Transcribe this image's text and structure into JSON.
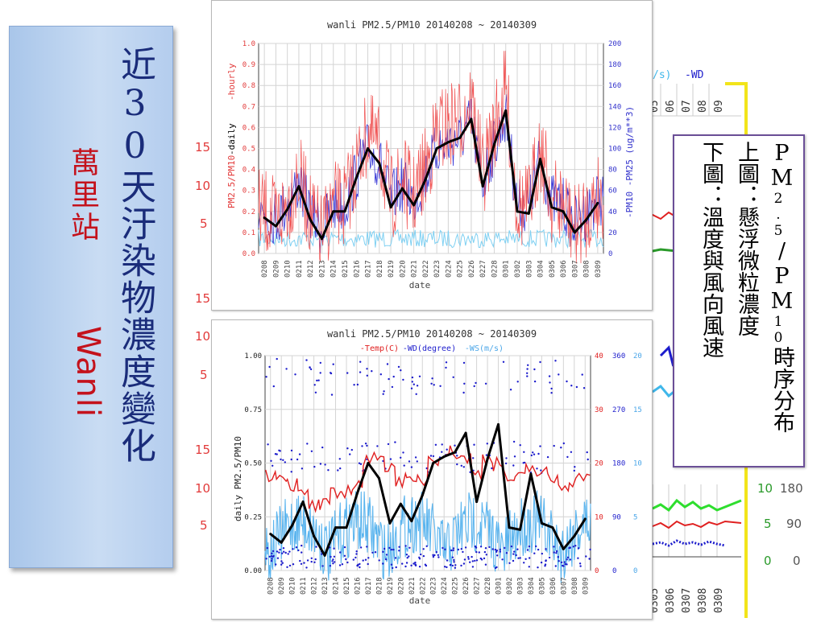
{
  "left_title": {
    "title_chars": "近30天汙染物濃度變化",
    "station_zh": "萬里站",
    "station_en": "Wanli"
  },
  "note": {
    "line1_parts": [
      "PM",
      "2.5",
      "/PM",
      "10",
      "時序分布"
    ],
    "line2": "上圖：懸浮微粒濃度",
    "line3": "下圖：溫度與風向風速"
  },
  "background_labels": {
    "left_scale": [
      "15",
      "10",
      "5",
      "15",
      "10",
      "5",
      "15",
      "10",
      "5"
    ],
    "right_scale": [
      "10",
      "5",
      "0"
    ],
    "right_scale_dir": [
      "180",
      "90",
      "0"
    ],
    "header_fragment": "/s)",
    "header_wd": "-WD",
    "dates_top": [
      "05",
      "06",
      "07",
      "08",
      "09"
    ],
    "dates_bottom": [
      "0305",
      "0306",
      "0307",
      "0308",
      "0309"
    ]
  },
  "chart_data": [
    {
      "type": "line",
      "title": "wanli PM2.5/PM10 20140208 ~ 20140309",
      "xlabel": "date",
      "ylabel_left": "PM2.5/PM10",
      "ylabel_left_extra": [
        "-daily",
        "-hourly"
      ],
      "ylabel_right": "-PM10 -PM25 (ug/m**3)",
      "ylim": [
        0,
        1
      ],
      "ylim_right": [
        0,
        200
      ],
      "yticks_left": [
        "0.0",
        "0.1",
        "0.2",
        "0.3",
        "0.4",
        "0.5",
        "0.6",
        "0.7",
        "0.8",
        "0.9",
        "1.0"
      ],
      "yticks_right": [
        "0",
        "20",
        "40",
        "60",
        "80",
        "100",
        "120",
        "140",
        "160",
        "180",
        "200"
      ],
      "categories": [
        "0208",
        "0209",
        "0210",
        "0211",
        "0212",
        "0213",
        "0214",
        "0215",
        "0216",
        "0217",
        "0218",
        "0219",
        "0220",
        "0221",
        "0222",
        "0223",
        "0224",
        "0225",
        "0226",
        "0227",
        "0228",
        "0301",
        "0302",
        "0303",
        "0304",
        "0305",
        "0306",
        "0307",
        "0308",
        "0309"
      ],
      "series": [
        {
          "name": "daily",
          "color": "#000000",
          "values": [
            0.17,
            0.13,
            0.21,
            0.32,
            0.16,
            0.07,
            0.2,
            0.2,
            0.36,
            0.5,
            0.43,
            0.22,
            0.31,
            0.23,
            0.35,
            0.5,
            0.53,
            0.55,
            0.64,
            0.32,
            0.52,
            0.68,
            0.2,
            0.19,
            0.45,
            0.22,
            0.2,
            0.1,
            0.16,
            0.24
          ]
        },
        {
          "name": "hourly",
          "color": "#e23a3a"
        },
        {
          "name": "PM10",
          "color": "#3333cc"
        },
        {
          "name": "PM25",
          "color": "#3fb7ea"
        }
      ]
    },
    {
      "type": "line",
      "title": "wanli PM2.5/PM10 20140208 ~ 20140309",
      "subtitle_parts": [
        "-Temp(C)",
        "-WD(degree)",
        "-WS(m/s)"
      ],
      "xlabel": "date",
      "ylabel": "daily PM2.5/PM10",
      "ylim": [
        0,
        1
      ],
      "yticks_left": [
        "0.00",
        "0.25",
        "0.50",
        "0.75",
        "1.00"
      ],
      "yticks_temp": [
        "0",
        "10",
        "20",
        "30",
        "40"
      ],
      "yticks_wd": [
        "0",
        "90",
        "180",
        "270",
        "360"
      ],
      "yticks_ws": [
        "0",
        "5",
        "10",
        "15",
        "20"
      ],
      "categories": [
        "0208",
        "0209",
        "0210",
        "0211",
        "0212",
        "0213",
        "0214",
        "0215",
        "0216",
        "0217",
        "0218",
        "0219",
        "0220",
        "0221",
        "0222",
        "0223",
        "0224",
        "0225",
        "0226",
        "0227",
        "0228",
        "0301",
        "0302",
        "0303",
        "0304",
        "0305",
        "0306",
        "0307",
        "0308",
        "0309"
      ],
      "series": [
        {
          "name": "daily",
          "color": "#000000",
          "values": [
            0.17,
            0.13,
            0.21,
            0.32,
            0.16,
            0.07,
            0.2,
            0.2,
            0.36,
            0.5,
            0.43,
            0.22,
            0.31,
            0.23,
            0.35,
            0.5,
            0.53,
            0.55,
            0.64,
            0.32,
            0.52,
            0.68,
            0.2,
            0.19,
            0.45,
            0.22,
            0.2,
            0.1,
            0.16,
            0.24
          ]
        },
        {
          "name": "Temp",
          "color": "#e02020",
          "values": [
            18,
            18,
            16,
            14,
            12,
            12,
            14,
            15,
            16,
            20,
            22,
            19,
            17,
            16,
            17,
            21,
            22,
            22,
            21,
            18,
            21,
            20,
            17,
            17,
            19,
            18,
            17,
            16,
            17,
            18
          ]
        },
        {
          "name": "WS",
          "color": "#4aa6e8"
        },
        {
          "name": "WD",
          "color": "#1c1ccc"
        }
      ]
    }
  ]
}
